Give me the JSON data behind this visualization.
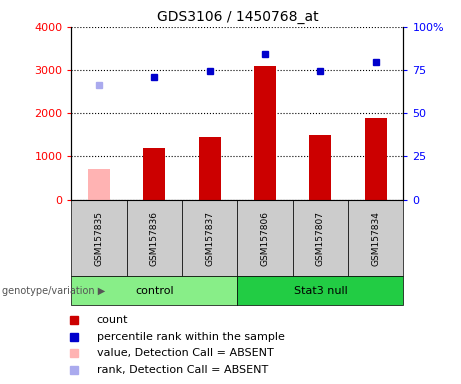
{
  "title": "GDS3106 / 1450768_at",
  "categories": [
    "GSM157835",
    "GSM157836",
    "GSM157837",
    "GSM157806",
    "GSM157807",
    "GSM157834"
  ],
  "bar_values": [
    700,
    1200,
    1450,
    3100,
    1500,
    1900
  ],
  "bar_colors": [
    "#ffb3b3",
    "#cc0000",
    "#cc0000",
    "#cc0000",
    "#cc0000",
    "#cc0000"
  ],
  "dot_values_left": [
    2650,
    2850,
    2980,
    3380,
    2980,
    3180
  ],
  "dot_colors": [
    "#aaaaee",
    "#0000cc",
    "#0000cc",
    "#0000cc",
    "#0000cc",
    "#0000cc"
  ],
  "ylim_left": [
    0,
    4000
  ],
  "ylim_right": [
    0,
    100
  ],
  "yticks_left": [
    0,
    1000,
    2000,
    3000,
    4000
  ],
  "ytick_labels_left": [
    "0",
    "1000",
    "2000",
    "3000",
    "4000"
  ],
  "yticks_right": [
    0,
    25,
    50,
    75,
    100
  ],
  "ytick_labels_right": [
    "0",
    "25",
    "50",
    "75",
    "100%"
  ],
  "groups": [
    {
      "label": "control",
      "indices": [
        0,
        1,
        2
      ],
      "color": "#88ee88"
    },
    {
      "label": "Stat3 null",
      "indices": [
        3,
        4,
        5
      ],
      "color": "#22cc44"
    }
  ],
  "legend": [
    {
      "label": "count",
      "color": "#cc0000"
    },
    {
      "label": "percentile rank within the sample",
      "color": "#0000cc"
    },
    {
      "label": "value, Detection Call = ABSENT",
      "color": "#ffb3b3"
    },
    {
      "label": "rank, Detection Call = ABSENT",
      "color": "#aaaaee"
    }
  ],
  "background_label": "#cccccc",
  "title_fontsize": 10,
  "tick_fontsize": 8,
  "label_fontsize": 7,
  "legend_fontsize": 8
}
